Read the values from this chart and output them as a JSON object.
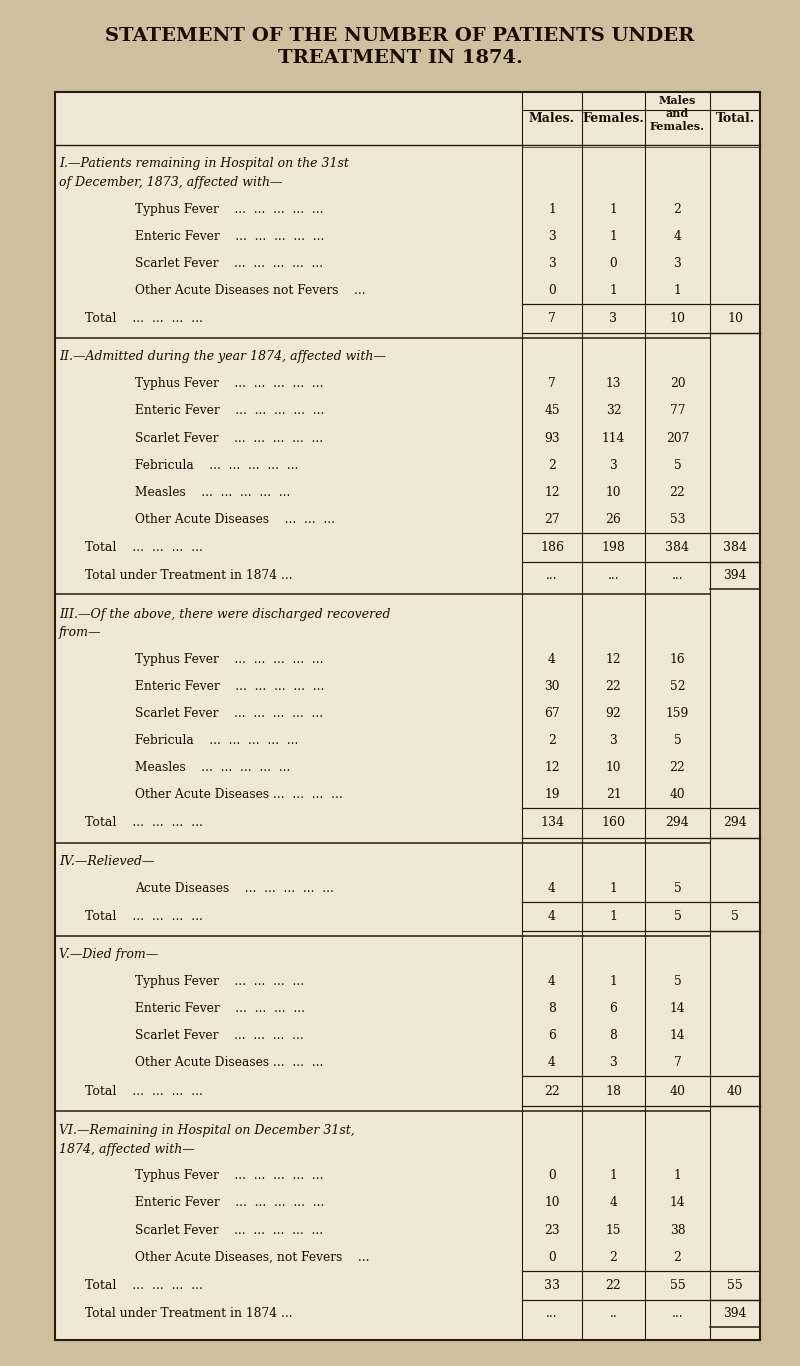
{
  "title_line1": "STATEMENT OF THE NUMBER OF PATIENTS UNDER",
  "title_line2": "TREATMENT IN 1874.",
  "bg_color": "#f0e8d5",
  "page_bg": "#cfc0a0",
  "text_color": "#1a0a00",
  "sections": [
    {
      "heading_lines": [
        "I.—Patients remaining in Hospital on the 31st",
        "of December, 1873, affected with—"
      ],
      "rows": [
        {
          "label": "Typhus Fever    ...  ...  ...  ...  ...",
          "indent": 2,
          "m": "1",
          "f": "1",
          "mf": "2",
          "t": ""
        },
        {
          "label": "Enteric Fever    ...  ...  ...  ...  ...",
          "indent": 2,
          "m": "3",
          "f": "1",
          "mf": "4",
          "t": ""
        },
        {
          "label": "Scarlet Fever    ...  ...  ...  ...  ...",
          "indent": 2,
          "m": "3",
          "f": "0",
          "mf": "3",
          "t": ""
        },
        {
          "label": "Other Acute Diseases not Fevers    ...",
          "indent": 2,
          "m": "0",
          "f": "1",
          "mf": "1",
          "t": ""
        }
      ],
      "total_row": {
        "label": "Total    ...  ...  ...  ...",
        "m": "7",
        "f": "3",
        "mf": "10",
        "t": "10"
      },
      "extra_row": null
    },
    {
      "heading_lines": [
        "II.—Admitted during the year 1874, affected with—"
      ],
      "rows": [
        {
          "label": "Typhus Fever    ...  ...  ...  ...  ...",
          "indent": 2,
          "m": "7",
          "f": "13",
          "mf": "20",
          "t": ""
        },
        {
          "label": "Enteric Fever    ...  ...  ...  ...  ...",
          "indent": 2,
          "m": "45",
          "f": "32",
          "mf": "77",
          "t": ""
        },
        {
          "label": "Scarlet Fever    ...  ...  ...  ...  ...",
          "indent": 2,
          "m": "93",
          "f": "114",
          "mf": "207",
          "t": ""
        },
        {
          "label": "Febricula    ...  ...  ...  ...  ...",
          "indent": 2,
          "m": "2",
          "f": "3",
          "mf": "5",
          "t": ""
        },
        {
          "label": "Measles    ...  ...  ...  ...  ...",
          "indent": 2,
          "m": "12",
          "f": "10",
          "mf": "22",
          "t": ""
        },
        {
          "label": "Other Acute Diseases    ...  ...  ...",
          "indent": 2,
          "m": "27",
          "f": "26",
          "mf": "53",
          "t": ""
        }
      ],
      "total_row": {
        "label": "Total    ...  ...  ...  ...",
        "m": "186",
        "f": "198",
        "mf": "384",
        "t": "384"
      },
      "extra_row": {
        "label": "Total under Treatment in 1874 ...",
        "m": "...",
        "f": "...",
        "mf": "...",
        "t": "394"
      }
    },
    {
      "heading_lines": [
        "III.—Of the above, there were discharged recovered",
        "from—"
      ],
      "rows": [
        {
          "label": "Typhus Fever    ...  ...  ...  ...  ...",
          "indent": 2,
          "m": "4",
          "f": "12",
          "mf": "16",
          "t": ""
        },
        {
          "label": "Enteric Fever    ...  ...  ...  ...  ...",
          "indent": 2,
          "m": "30",
          "f": "22",
          "mf": "52",
          "t": ""
        },
        {
          "label": "Scarlet Fever    ...  ...  ...  ...  ...",
          "indent": 2,
          "m": "67",
          "f": "92",
          "mf": "159",
          "t": ""
        },
        {
          "label": "Febricula    ...  ...  ...  ...  ...",
          "indent": 2,
          "m": "2",
          "f": "3",
          "mf": "5",
          "t": ""
        },
        {
          "label": "Measles    ...  ...  ...  ...  ...",
          "indent": 2,
          "m": "12",
          "f": "10",
          "mf": "22",
          "t": ""
        },
        {
          "label": "Other Acute Diseases ...  ...  ...  ...",
          "indent": 2,
          "m": "19",
          "f": "21",
          "mf": "40",
          "t": ""
        }
      ],
      "total_row": {
        "label": "Total    ...  ...  ...  ...",
        "m": "134",
        "f": "160",
        "mf": "294",
        "t": "294"
      },
      "extra_row": null
    },
    {
      "heading_lines": [
        "IV.—Relieved—"
      ],
      "rows": [
        {
          "label": "Acute Diseases    ...  ...  ...  ...  ...",
          "indent": 2,
          "m": "4",
          "f": "1",
          "mf": "5",
          "t": ""
        }
      ],
      "total_row": {
        "label": "Total    ...  ...  ...  ...",
        "m": "4",
        "f": "1",
        "mf": "5",
        "t": "5"
      },
      "extra_row": null
    },
    {
      "heading_lines": [
        "V.—Died from—"
      ],
      "rows": [
        {
          "label": "Typhus Fever    ...  ...  ...  ...",
          "indent": 2,
          "m": "4",
          "f": "1",
          "mf": "5",
          "t": ""
        },
        {
          "label": "Enteric Fever    ...  ...  ...  ...",
          "indent": 2,
          "m": "8",
          "f": "6",
          "mf": "14",
          "t": ""
        },
        {
          "label": "Scarlet Fever    ...  ...  ...  ...",
          "indent": 2,
          "m": "6",
          "f": "8",
          "mf": "14",
          "t": ""
        },
        {
          "label": "Other Acute Diseases ...  ...  ...",
          "indent": 2,
          "m": "4",
          "f": "3",
          "mf": "7",
          "t": ""
        }
      ],
      "total_row": {
        "label": "Total    ...  ...  ...  ...",
        "m": "22",
        "f": "18",
        "mf": "40",
        "t": "40"
      },
      "extra_row": null
    },
    {
      "heading_lines": [
        "VI.—Remaining in Hospital on December 31st,",
        "1874, affected with—"
      ],
      "rows": [
        {
          "label": "Typhus Fever    ...  ...  ...  ...  ...",
          "indent": 2,
          "m": "0",
          "f": "1",
          "mf": "1",
          "t": ""
        },
        {
          "label": "Enteric Fever    ...  ...  ...  ...  ...",
          "indent": 2,
          "m": "10",
          "f": "4",
          "mf": "14",
          "t": ""
        },
        {
          "label": "Scarlet Fever    ...  ...  ...  ...  ...",
          "indent": 2,
          "m": "23",
          "f": "15",
          "mf": "38",
          "t": ""
        },
        {
          "label": "Other Acute Diseases, not Fevers    ...",
          "indent": 2,
          "m": "0",
          "f": "2",
          "mf": "2",
          "t": ""
        }
      ],
      "total_row": {
        "label": "Total    ...  ...  ...  ...",
        "m": "33",
        "f": "22",
        "mf": "55",
        "t": "55"
      },
      "extra_row": {
        "label": "Total under Treatment in 1874 ...",
        "m": "...",
        "f": "..",
        "mf": "...",
        "t": "394"
      }
    }
  ]
}
